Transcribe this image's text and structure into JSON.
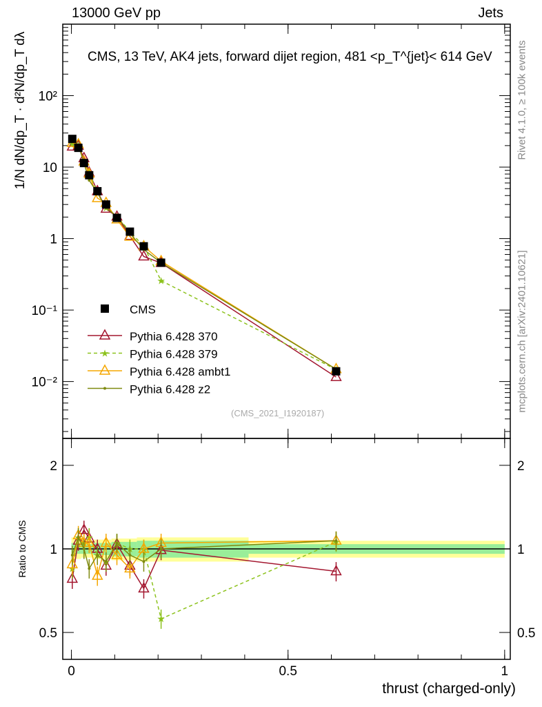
{
  "header": {
    "left": "13000 GeV pp",
    "right": "Jets"
  },
  "side_text": {
    "rivet": "Rivet 4.1.0, ≥ 100k events",
    "mcplots": "mcplots.cern.ch [arXiv:2401.10621]"
  },
  "chart_data": {
    "type": "line",
    "title": "CMS, 13 TeV, AK4 jets, forward dijet region, 481 <p_T^{jet}< 614 GeV",
    "xlabel": "thrust (charged-only)",
    "ylabel": "1/N dN/dp_T · d²N/dp_T dλ",
    "ratio_ylabel": "Ratio to CMS",
    "watermark": "(CMS_2021_I1920187)",
    "xlim": [
      -0.02,
      1.013
    ],
    "ylim": [
      0.0016,
      1000
    ],
    "yscale": "log",
    "ratio_ylim": [
      0.4,
      2.5
    ],
    "xticks": [
      {
        "v": 0,
        "label": "0"
      },
      {
        "v": 0.5,
        "label": "0.5"
      },
      {
        "v": 1,
        "label": "1"
      }
    ],
    "yticks": [
      {
        "v": 0.01,
        "label": "10⁻²"
      },
      {
        "v": 0.1,
        "label": "10⁻¹"
      },
      {
        "v": 1,
        "label": "1"
      },
      {
        "v": 10,
        "label": "10"
      },
      {
        "v": 100,
        "label": "10²"
      }
    ],
    "ratio_yticks": [
      {
        "v": 0.5,
        "label": "0.5"
      },
      {
        "v": 1,
        "label": "1"
      },
      {
        "v": 2,
        "label": "2"
      }
    ],
    "x": [
      0.002,
      0.016,
      0.029,
      0.041,
      0.06,
      0.08,
      0.105,
      0.135,
      0.167,
      0.207,
      0.611
    ],
    "cms": [
      24.8,
      18.6,
      11.4,
      7.7,
      4.6,
      3.0,
      1.95,
      1.25,
      0.78,
      0.46,
      0.0139
    ],
    "band_total": [
      0.1,
      0.08,
      0.07,
      0.07,
      0.08,
      0.08,
      0.09,
      0.09,
      0.1,
      0.1,
      0.07
    ],
    "band_stat": [
      0.05,
      0.04,
      0.04,
      0.04,
      0.05,
      0.05,
      0.06,
      0.06,
      0.07,
      0.07,
      0.04
    ],
    "series": [
      {
        "name": "Pythia 6.428 370",
        "color": "#a3162f",
        "marker": "open-triangle",
        "dash": false,
        "ratio": [
          0.78,
          1.07,
          1.17,
          1.09,
          1.0,
          0.87,
          1.04,
          0.87,
          0.72,
          0.99,
          0.83
        ]
      },
      {
        "name": "Pythia 6.428 379",
        "color": "#8cc21c",
        "marker": "star",
        "dash": true,
        "ratio": [
          0.85,
          1.1,
          1.05,
          1.1,
          0.95,
          0.9,
          1.05,
          1.0,
          1.0,
          0.56,
          1.06
        ]
      },
      {
        "name": "Pythia 6.428 ambt1",
        "color": "#f5a700",
        "marker": "open-triangle",
        "dash": false,
        "ratio": [
          0.88,
          1.12,
          1.05,
          1.05,
          0.8,
          1.05,
          0.95,
          0.85,
          1.0,
          1.05,
          1.07
        ]
      },
      {
        "name": "Pythia 6.428 z2",
        "color": "#7f8a10",
        "marker": "dot",
        "dash": false,
        "ratio": [
          0.95,
          1.1,
          1.0,
          0.85,
          0.95,
          0.9,
          1.05,
          0.95,
          0.9,
          1.0,
          1.07
        ]
      }
    ],
    "legend": {
      "placement": "bottom-left",
      "cms_label": "CMS"
    }
  }
}
